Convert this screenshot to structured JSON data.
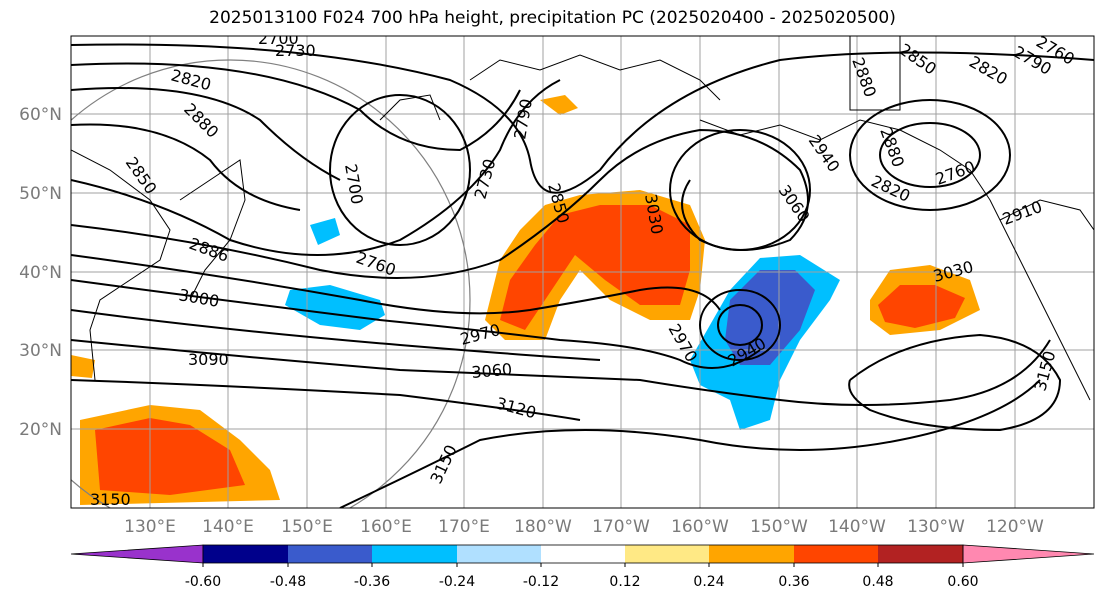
{
  "title": "2025013100 F024 700 hPa height, precipitation PC (2025020400 - 2025020500)",
  "map": {
    "lat_labels": [
      "60°N",
      "50°N",
      "40°N",
      "30°N",
      "20°N"
    ],
    "lon_labels": [
      "130°E",
      "140°E",
      "150°E",
      "160°E",
      "170°E",
      "180°W",
      "170°W",
      "160°W",
      "150°W",
      "140°W",
      "130°W",
      "120°W"
    ],
    "contour_labels": [
      "2700",
      "2730",
      "2820",
      "2880",
      "2850",
      "2886",
      "3000",
      "3090",
      "2760",
      "2700",
      "2730",
      "2790",
      "2850",
      "3030",
      "2970",
      "3060",
      "3120",
      "3150",
      "2970",
      "2940",
      "3060",
      "2940",
      "2880",
      "2850",
      "2820",
      "2790",
      "2760",
      "2880",
      "2820",
      "2910",
      "3030",
      "3150",
      "2760",
      "3150"
    ],
    "colors": {
      "coast": "#000000",
      "grid": "#a0a0a0",
      "contour": "#000000"
    }
  },
  "colorbar": {
    "colors": [
      "#9932cc",
      "#00008b",
      "#3a5bcc",
      "#00bfff",
      "#b0e0ff",
      "#ffffff",
      "#ffe985",
      "#ffa500",
      "#ff4500",
      "#b22222",
      "#ff88b0"
    ],
    "tick_labels": [
      "-0.60",
      "-0.48",
      "-0.36",
      "-0.24",
      "-0.12",
      "0.12",
      "0.24",
      "0.36",
      "0.48",
      "0.60"
    ]
  }
}
